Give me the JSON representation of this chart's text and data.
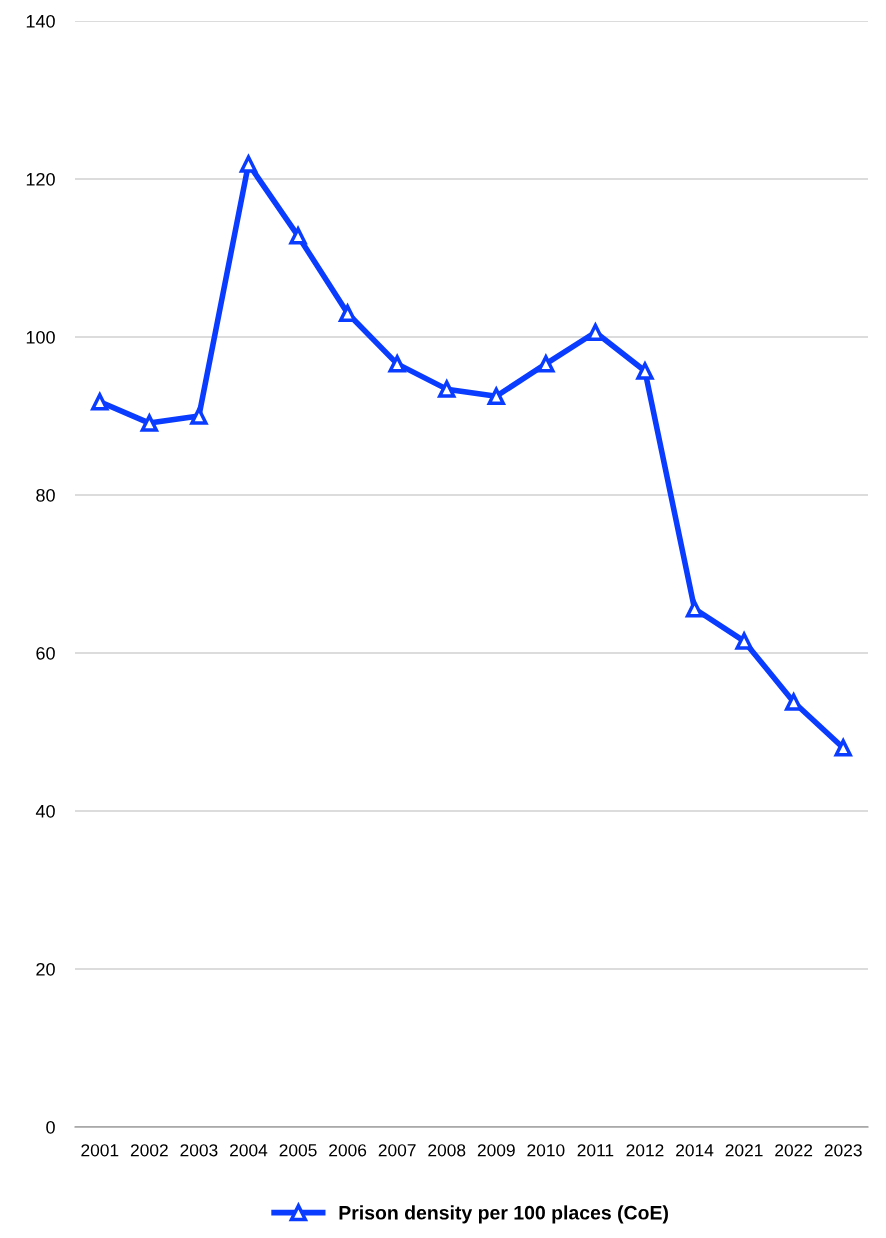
{
  "chart_data": {
    "type": "line",
    "categories": [
      "2001",
      "2002",
      "2003",
      "2004",
      "2005",
      "2006",
      "2007",
      "2008",
      "2009",
      "2010",
      "2011",
      "2012",
      "2014",
      "2021",
      "2022",
      "2023"
    ],
    "series": [
      {
        "name": "Prison density per 100 places (CoE)",
        "color": "#0a3cff",
        "values": [
          91.8,
          89.1,
          90.0,
          121.9,
          112.8,
          103.0,
          96.6,
          93.4,
          92.5,
          96.6,
          100.6,
          95.7,
          65.6,
          61.5,
          53.8,
          48.0
        ]
      }
    ],
    "ylim": [
      0,
      140
    ],
    "yticks": [
      0,
      20,
      40,
      60,
      80,
      100,
      120,
      140
    ],
    "grid": "y",
    "legend": "bottom",
    "marker": "triangle",
    "line_style": "solid"
  }
}
